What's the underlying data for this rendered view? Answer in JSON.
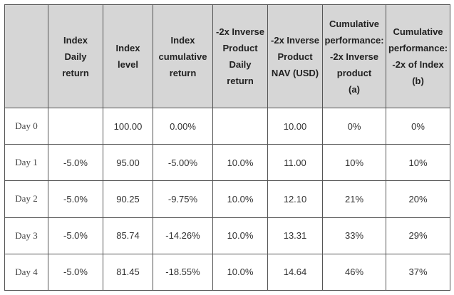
{
  "table": {
    "headers": [
      [],
      [
        "Index",
        "Daily",
        "return"
      ],
      [
        "Index",
        "level"
      ],
      [
        "Index",
        "cumulative",
        "return"
      ],
      [
        "-2x Inverse",
        "Product",
        "Daily",
        "return"
      ],
      [
        "-2x Inverse",
        "Product",
        "NAV (USD)"
      ],
      [
        "Cumulative",
        "performance:",
        "-2x Inverse",
        "product",
        "(a)"
      ],
      [
        "Cumulative",
        "performance:",
        "-2x of Index",
        "(b)"
      ]
    ],
    "rows": [
      [
        "Day 0",
        "",
        "100.00",
        "0.00%",
        "",
        "10.00",
        "0%",
        "0%"
      ],
      [
        "Day 1",
        "-5.0%",
        "95.00",
        "-5.00%",
        "10.0%",
        "11.00",
        "10%",
        "10%"
      ],
      [
        "Day 2",
        "-5.0%",
        "90.25",
        "-9.75%",
        "10.0%",
        "12.10",
        "21%",
        "20%"
      ],
      [
        "Day 3",
        "-5.0%",
        "85.74",
        "-14.26%",
        "10.0%",
        "13.31",
        "33%",
        "29%"
      ],
      [
        "Day 4",
        "-5.0%",
        "81.45",
        "-18.55%",
        "10.0%",
        "14.64",
        "46%",
        "37%"
      ]
    ]
  }
}
